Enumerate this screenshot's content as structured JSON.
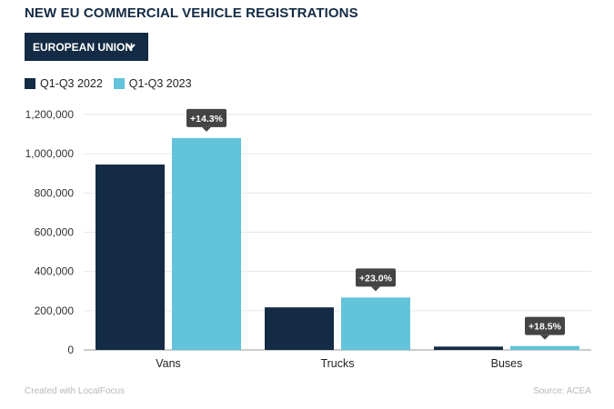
{
  "title": "NEW EU COMMERCIAL VEHICLE REGISTRATIONS",
  "dropdown": {
    "selected": "EUROPEAN UNION"
  },
  "colors": {
    "series_2022": "#132b44",
    "series_2023": "#62c3da",
    "grid": "#e6e6e6",
    "callout_bg": "#444444"
  },
  "chart_data": {
    "type": "bar",
    "title": "NEW EU COMMERCIAL VEHICLE REGISTRATIONS",
    "xlabel": "",
    "ylabel": "",
    "categories": [
      "Vans",
      "Trucks",
      "Buses"
    ],
    "series": [
      {
        "name": "Q1-Q3 2022",
        "values": [
          945000,
          217000,
          17000
        ]
      },
      {
        "name": "Q1-Q3 2023",
        "values": [
          1080000,
          267000,
          20000
        ]
      }
    ],
    "annotations": [
      "+14.3%",
      "+23.0%",
      "+18.5%"
    ],
    "ylim": [
      0,
      1200000
    ],
    "yticks": [
      0,
      200000,
      400000,
      600000,
      800000,
      1000000,
      1200000
    ],
    "ytick_labels": [
      "0",
      "200,000",
      "400,000",
      "600,000",
      "800,000",
      "1,000,000",
      "1,200,000"
    ],
    "legend_position": "top-left",
    "grid": true
  },
  "footer": {
    "credit": "Created with LocalFocus",
    "source": "Source: ACEA"
  }
}
